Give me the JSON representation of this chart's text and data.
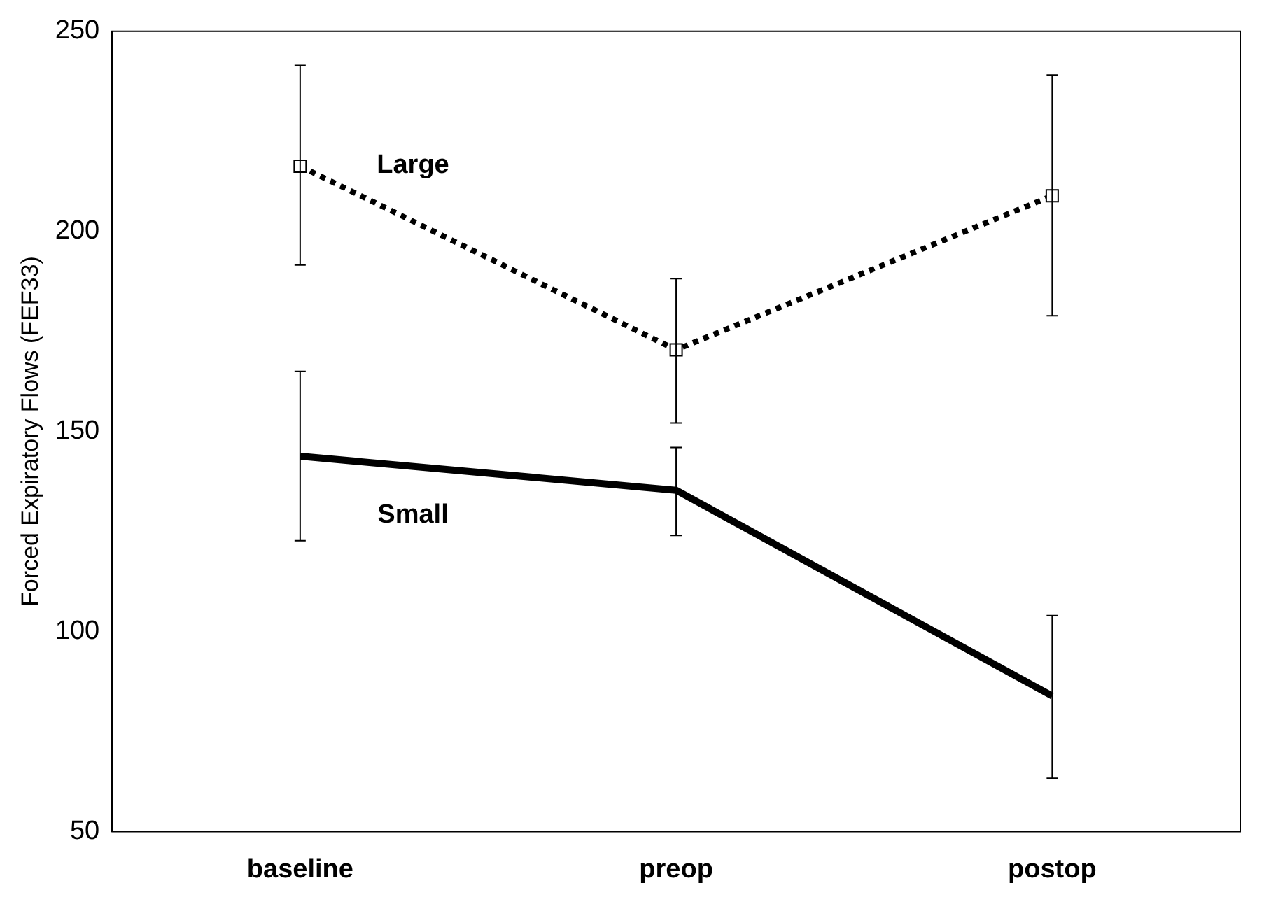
{
  "chart_data": {
    "type": "line",
    "ylabel": "Forced Expiratory Flows (FEF33)",
    "categories": [
      "baseline",
      "preop",
      "postop"
    ],
    "ylim": [
      50,
      250
    ],
    "yticks": [
      50,
      100,
      150,
      200,
      250
    ],
    "grid": false,
    "legend": false,
    "series": [
      {
        "name": "Large",
        "color": "#000000",
        "values": [
          216.3,
          170.4,
          208.9
        ],
        "errors": [
          [
            191.6,
            241.5
          ],
          [
            152.1,
            188.2
          ],
          [
            178.9,
            239.1
          ]
        ],
        "line_style": "dotted",
        "marker": "square"
      },
      {
        "name": "Small",
        "color": "#000000",
        "values": [
          143.8,
          135.3,
          83.9
        ],
        "errors": [
          [
            122.7,
            165.0
          ],
          [
            124.0,
            146.0
          ],
          [
            63.3,
            104.0
          ]
        ],
        "line_style": "solid",
        "marker": "none"
      }
    ]
  }
}
